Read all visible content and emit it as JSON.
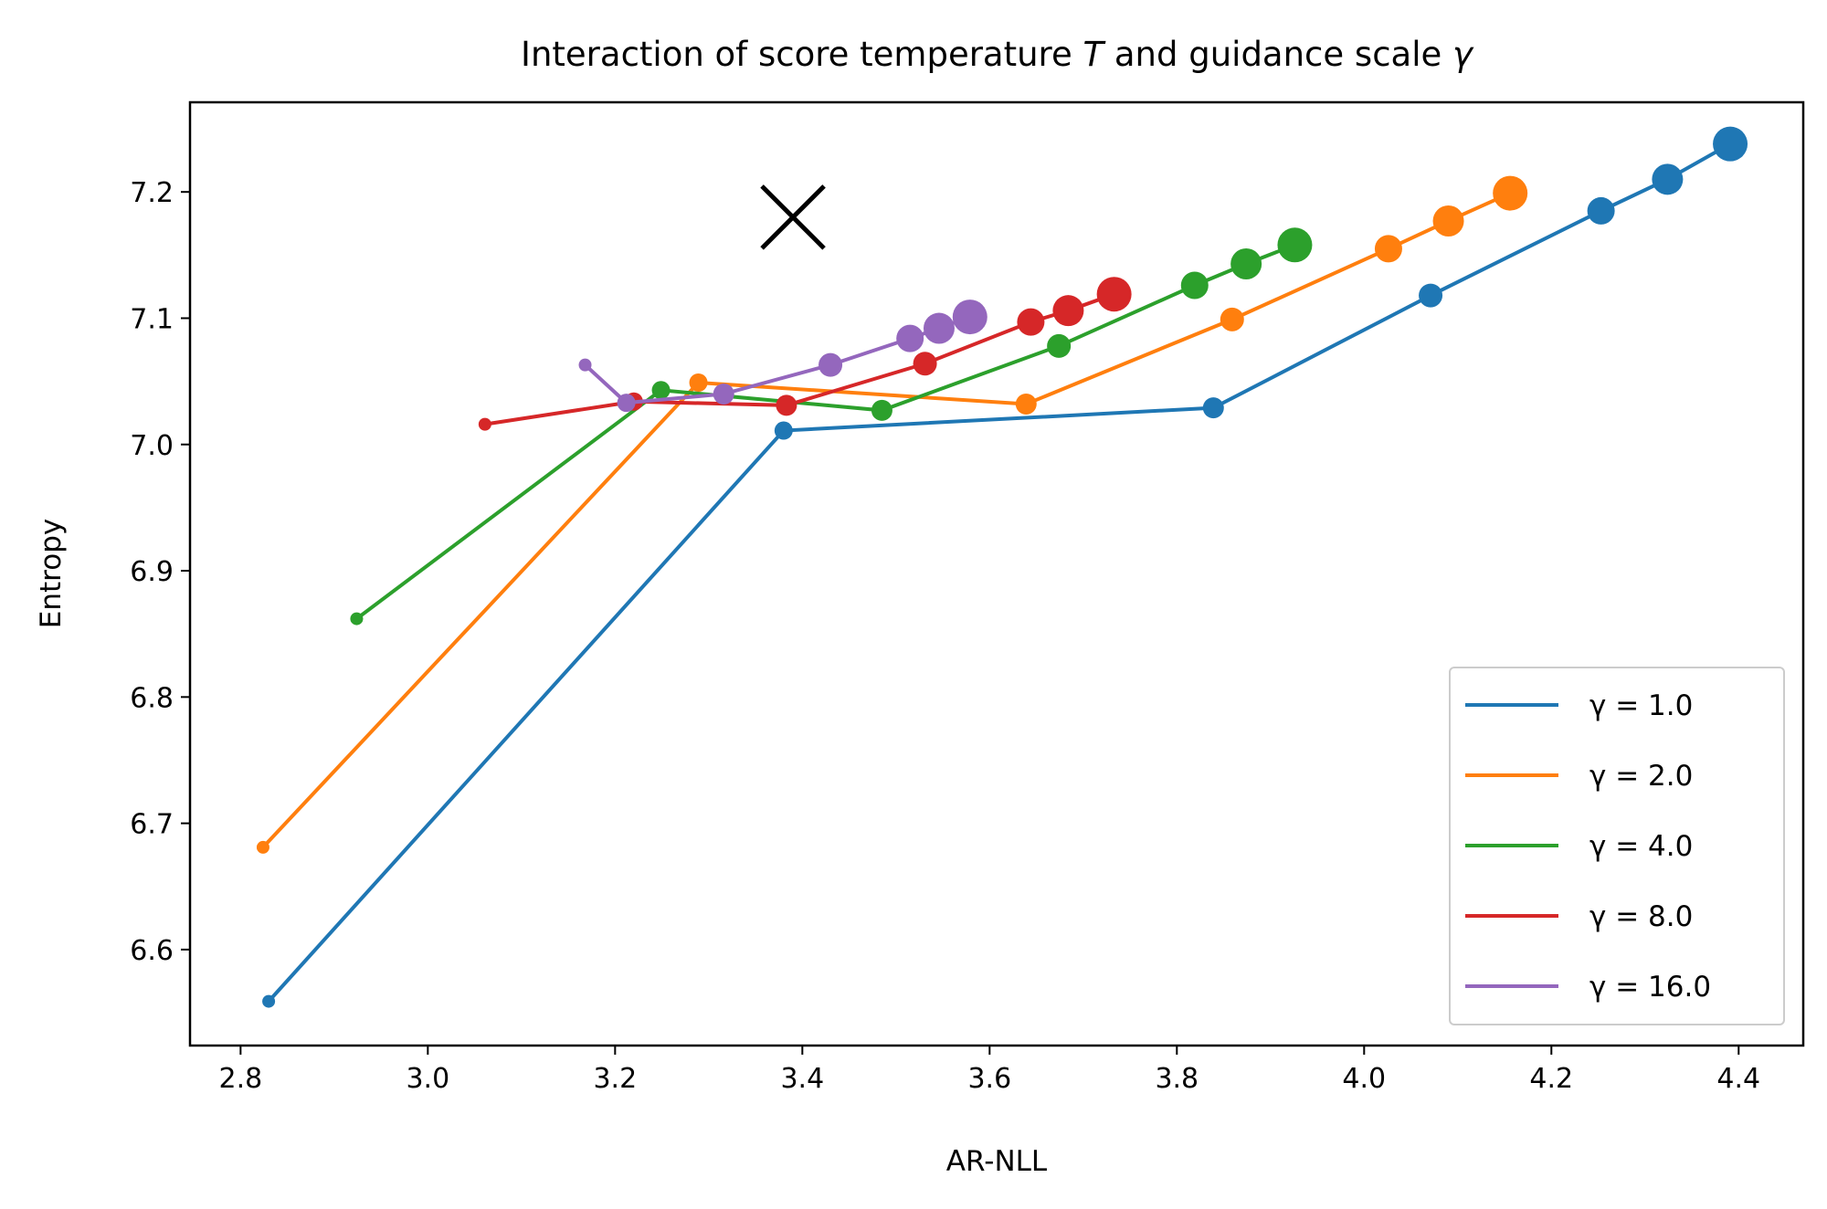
{
  "chart_data": {
    "type": "line",
    "title": "Interaction of score temperature T and guidance scale γ",
    "title_parts": {
      "prefix": "Interaction of score temperature ",
      "T": "T",
      "middle": " and guidance scale ",
      "gamma": "γ"
    },
    "xlabel": "AR-NLL",
    "ylabel": "Entropy",
    "xlim": [
      2.746,
      4.469
    ],
    "ylim": [
      6.524,
      7.271
    ],
    "xticks": [
      "2.8",
      "3.0",
      "3.2",
      "3.4",
      "3.6",
      "3.8",
      "4.0",
      "4.2",
      "4.4"
    ],
    "yticks": [
      "6.6",
      "6.7",
      "6.8",
      "6.9",
      "7.0",
      "7.1",
      "7.2"
    ],
    "grid": false,
    "legend_position": "bottom-right",
    "series": [
      {
        "name": "γ = 1.0",
        "color": "#1f77b4",
        "x": [
          2.83,
          3.38,
          3.839,
          4.071,
          4.253,
          4.324,
          4.391
        ],
        "y": [
          6.559,
          7.011,
          7.029,
          7.118,
          7.185,
          7.21,
          7.238
        ]
      },
      {
        "name": "γ = 2.0",
        "color": "#ff7f0e",
        "x": [
          2.824,
          3.289,
          3.639,
          3.859,
          4.026,
          4.09,
          4.156
        ],
        "y": [
          6.681,
          7.049,
          7.032,
          7.099,
          7.155,
          7.177,
          7.199
        ]
      },
      {
        "name": "γ = 4.0",
        "color": "#2ca02c",
        "x": [
          2.924,
          3.249,
          3.485,
          3.674,
          3.819,
          3.874,
          3.926
        ],
        "y": [
          6.862,
          7.043,
          7.027,
          7.078,
          7.126,
          7.143,
          7.158
        ]
      },
      {
        "name": "γ = 8.0",
        "color": "#d62728",
        "x": [
          3.061,
          3.22,
          3.383,
          3.531,
          3.644,
          3.684,
          3.733
        ],
        "y": [
          7.016,
          7.034,
          7.031,
          7.064,
          7.097,
          7.106,
          7.119
        ]
      },
      {
        "name": "γ = 16.0",
        "color": "#9467bd",
        "x": [
          3.168,
          3.212,
          3.316,
          3.43,
          3.515,
          3.546,
          3.579
        ],
        "y": [
          7.063,
          7.033,
          7.04,
          7.063,
          7.084,
          7.092,
          7.101
        ]
      }
    ],
    "reference_point": {
      "marker": "x",
      "color": "#000000",
      "x": 3.39,
      "y": 7.18
    }
  }
}
